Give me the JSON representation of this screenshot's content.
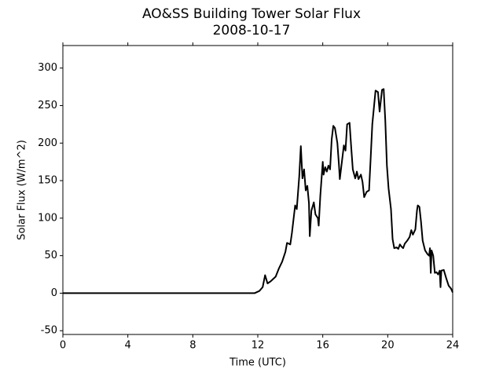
{
  "chart_data": {
    "type": "line",
    "title": "AO&SS Building Tower Solar Flux",
    "subtitle": "2008-10-17",
    "x_label": "Time (UTC)",
    "y_label": "Solar Flux (W/m^2)",
    "xlim": [
      0,
      24
    ],
    "xticks": [
      0,
      4,
      8,
      12,
      16,
      20,
      24
    ],
    "ylim": [
      -55,
      330
    ],
    "yticks": [
      -50,
      0,
      50,
      100,
      150,
      200,
      250,
      300
    ],
    "x": [
      0,
      11.8,
      12.1,
      12.3,
      12.45,
      12.6,
      12.8,
      13.1,
      13.3,
      13.5,
      13.7,
      13.8,
      14.0,
      14.1,
      14.3,
      14.4,
      14.55,
      14.65,
      14.75,
      14.85,
      14.95,
      15.05,
      15.15,
      15.2,
      15.3,
      15.45,
      15.55,
      15.7,
      15.75,
      15.85,
      16.0,
      16.05,
      16.15,
      16.25,
      16.35,
      16.45,
      16.55,
      16.65,
      16.75,
      16.9,
      17.0,
      17.05,
      17.15,
      17.3,
      17.4,
      17.5,
      17.65,
      17.75,
      17.85,
      18.0,
      18.1,
      18.2,
      18.35,
      18.45,
      18.55,
      18.7,
      18.85,
      18.95,
      19.05,
      19.25,
      19.4,
      19.5,
      19.65,
      19.75,
      19.85,
      19.95,
      20.05,
      20.2,
      20.3,
      20.4,
      20.55,
      20.65,
      20.75,
      20.85,
      20.95,
      21.05,
      21.2,
      21.35,
      21.45,
      21.55,
      21.7,
      21.8,
      21.85,
      21.95,
      22.05,
      22.15,
      22.3,
      22.45,
      22.55,
      22.6,
      22.65,
      22.7,
      22.8,
      22.9,
      23.0,
      23.1,
      23.2,
      23.25,
      23.3,
      23.45,
      23.6,
      23.75,
      23.9,
      24
    ],
    "series": [
      {
        "name": "Solar Flux",
        "color": "#000000",
        "values": [
          0,
          0,
          3,
          8,
          24,
          13,
          16,
          22,
          33,
          42,
          55,
          67,
          65,
          80,
          117,
          112,
          155,
          196,
          153,
          165,
          137,
          143,
          120,
          76,
          110,
          121,
          105,
          100,
          90,
          130,
          175,
          158,
          168,
          162,
          170,
          165,
          205,
          223,
          220,
          200,
          170,
          152,
          170,
          197,
          190,
          225,
          227,
          195,
          165,
          153,
          162,
          152,
          158,
          148,
          128,
          135,
          137,
          180,
          225,
          270,
          268,
          242,
          271,
          272,
          230,
          170,
          140,
          112,
          72,
          60,
          61,
          59,
          65,
          62,
          60,
          66,
          70,
          75,
          84,
          78,
          85,
          110,
          117,
          115,
          95,
          70,
          57,
          52,
          50,
          60,
          27,
          57,
          50,
          27,
          28,
          25,
          30,
          8,
          30,
          31,
          20,
          10,
          6,
          1
        ]
      }
    ]
  }
}
